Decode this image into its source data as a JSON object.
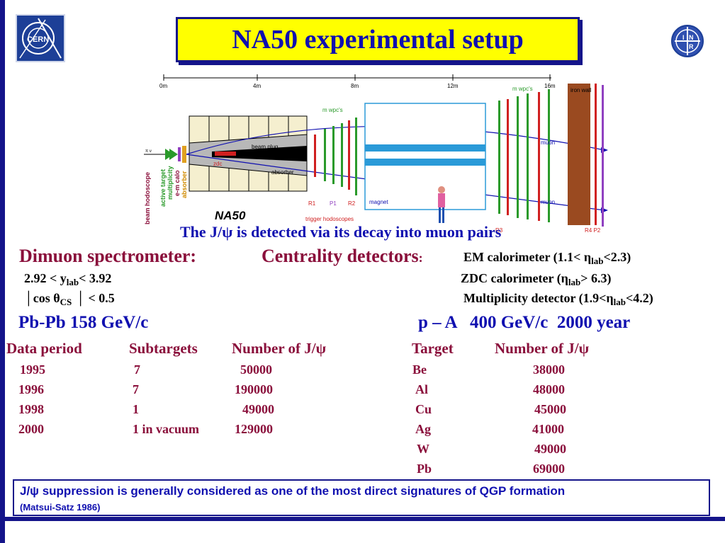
{
  "title": "NA50 experimental setup",
  "logos": {
    "left": "CERN",
    "right": "INR"
  },
  "diagram": {
    "scale_labels": [
      "0m",
      "4m",
      "8m",
      "12m",
      "16m"
    ],
    "labels": {
      "mwpc_top": "m wpc's",
      "mwpc_mid": "m wpc's",
      "iron_wall": "iron wall",
      "beam_plug": "beam plug",
      "zdc": "zdc",
      "absorber": "absorber",
      "muon_top": "muon",
      "muon_bottom": "muon",
      "magnet": "magnet",
      "r1": "R1",
      "p1": "P1",
      "r2": "R2",
      "trigger": "trigger hodoscopes",
      "r3": "R3",
      "r4p2": "R4 P2",
      "na50": "NA50",
      "beam_hodoscope": "beam hodoscope",
      "active_target": "active target",
      "multiplicity": "multiplicity",
      "em_calo": "e-m calo",
      "absorber_v": "absorber"
    }
  },
  "caption": "The J/ψ is detected via its decay into muon pairs",
  "dimuon": {
    "heading": "Dimuon spectrometer:",
    "cut1_a": "2.92 < y",
    "cut1_sub": "lab",
    "cut1_b": "< 3.92",
    "cut2_bar1": "│",
    "cut2_a": "cos θ",
    "cut2_sub": "CS",
    "cut2_bar2": "│",
    "cut2_b": " < 0.5"
  },
  "centrality": {
    "heading": "Centrality detectors",
    "colon": ":",
    "em_a": "EM calorimeter (1.1< η",
    "em_sub": "lab",
    "em_b": "<2.3)",
    "zdc_a": "ZDC calorimeter (η",
    "zdc_sub": "lab",
    "zdc_b": "> 6.3)",
    "mult_a": "Multiplicity detector (1.9<η",
    "mult_sub": "lab",
    "mult_b": "<4.2)"
  },
  "pbpb": {
    "heading": "Pb-Pb 158 GeV/c",
    "col_headers": [
      "Data period",
      "Subtargets",
      "Number of J/ψ"
    ],
    "rows": [
      {
        "period": "1995",
        "subtargets": "7",
        "count": "50000"
      },
      {
        "period": "1996",
        "subtargets": "7",
        "count": "190000"
      },
      {
        "period": "1998",
        "subtargets": "1",
        "count": "49000"
      },
      {
        "period": "2000",
        "subtargets": "1 in vacuum",
        "count": "129000"
      }
    ]
  },
  "pa": {
    "heading": "p – A   400 GeV/c  2000 year",
    "col_headers": [
      "Target",
      "Number of J/ψ"
    ],
    "rows": [
      {
        "target": "Be",
        "count": "38000"
      },
      {
        "target": "Al",
        "count": "48000"
      },
      {
        "target": "Cu",
        "count": "45000"
      },
      {
        "target": "Ag",
        "count": "41000"
      },
      {
        "target": "W",
        "count": "49000"
      },
      {
        "target": "Pb",
        "count": "69000"
      }
    ]
  },
  "footer": {
    "main": "J/ψ suppression is generally considered as one of the most direct signatures of QGP formation",
    "ref": "(Matsui-Satz 1986)"
  },
  "colors": {
    "frame": "#14148a",
    "title_bg": "#ffff00",
    "heading_blue": "#1010b0",
    "maroon": "#8a0f3b"
  }
}
